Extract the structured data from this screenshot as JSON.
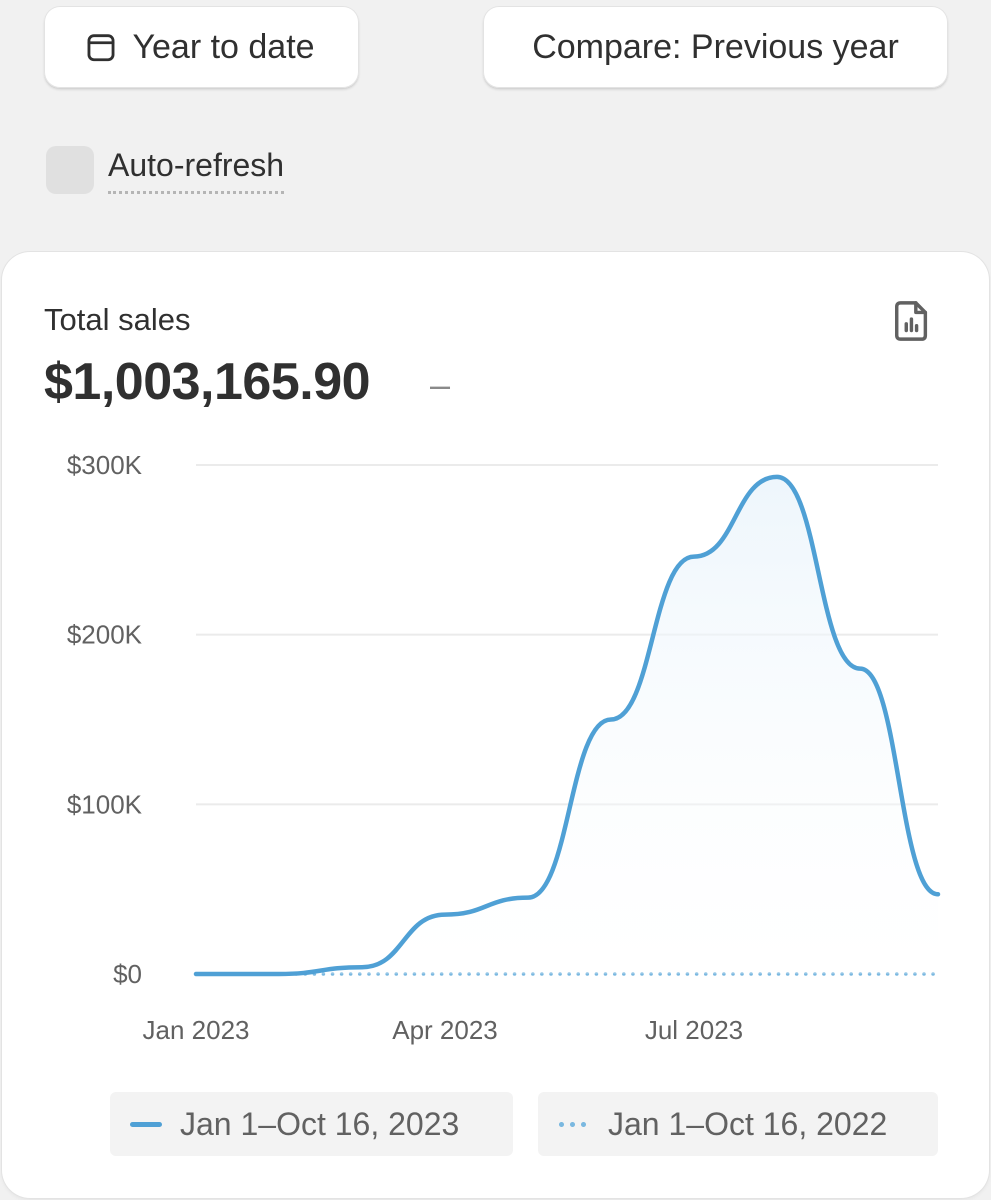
{
  "toolbar": {
    "range_label": "Year to date",
    "range_icon": "calendar-icon",
    "compare_label": "Compare: Previous year"
  },
  "auto_refresh": {
    "label": "Auto-refresh",
    "checked": false
  },
  "card": {
    "title": "Total sales",
    "value": "$1,003,165.90",
    "delta": "–",
    "report_icon": "report-chart-icon"
  },
  "colors": {
    "current_line": "#4fa0d5",
    "current_fill": "#e8f3fb",
    "previous_line": "#7ab8e0",
    "grid": "#ebebeb"
  },
  "chart_data": {
    "type": "area",
    "ylim": [
      0,
      300000
    ],
    "yticks": [
      {
        "value": 0,
        "label": "$0"
      },
      {
        "value": 100000,
        "label": "$100K"
      },
      {
        "value": 200000,
        "label": "$200K"
      },
      {
        "value": 300000,
        "label": "$300K"
      }
    ],
    "xticks": [
      "Jan 2023",
      "Apr 2023",
      "Jul 2023"
    ],
    "grid": true,
    "series": [
      {
        "name": "Jan 1–Oct 16, 2023",
        "style": "solid",
        "x": [
          "2023-01",
          "2023-02",
          "2023-03",
          "2023-04",
          "2023-05",
          "2023-06",
          "2023-07",
          "2023-08",
          "2023-09",
          "2023-10"
        ],
        "values": [
          0,
          0,
          4000,
          35000,
          45000,
          150000,
          246000,
          293000,
          180000,
          47000
        ]
      },
      {
        "name": "Jan 1–Oct 16, 2022",
        "style": "dotted",
        "x": [
          "2022-01",
          "2022-02",
          "2022-03",
          "2022-04",
          "2022-05",
          "2022-06",
          "2022-07",
          "2022-08",
          "2022-09",
          "2022-10"
        ],
        "values": [
          0,
          0,
          0,
          0,
          0,
          0,
          0,
          0,
          0,
          0
        ]
      }
    ]
  }
}
